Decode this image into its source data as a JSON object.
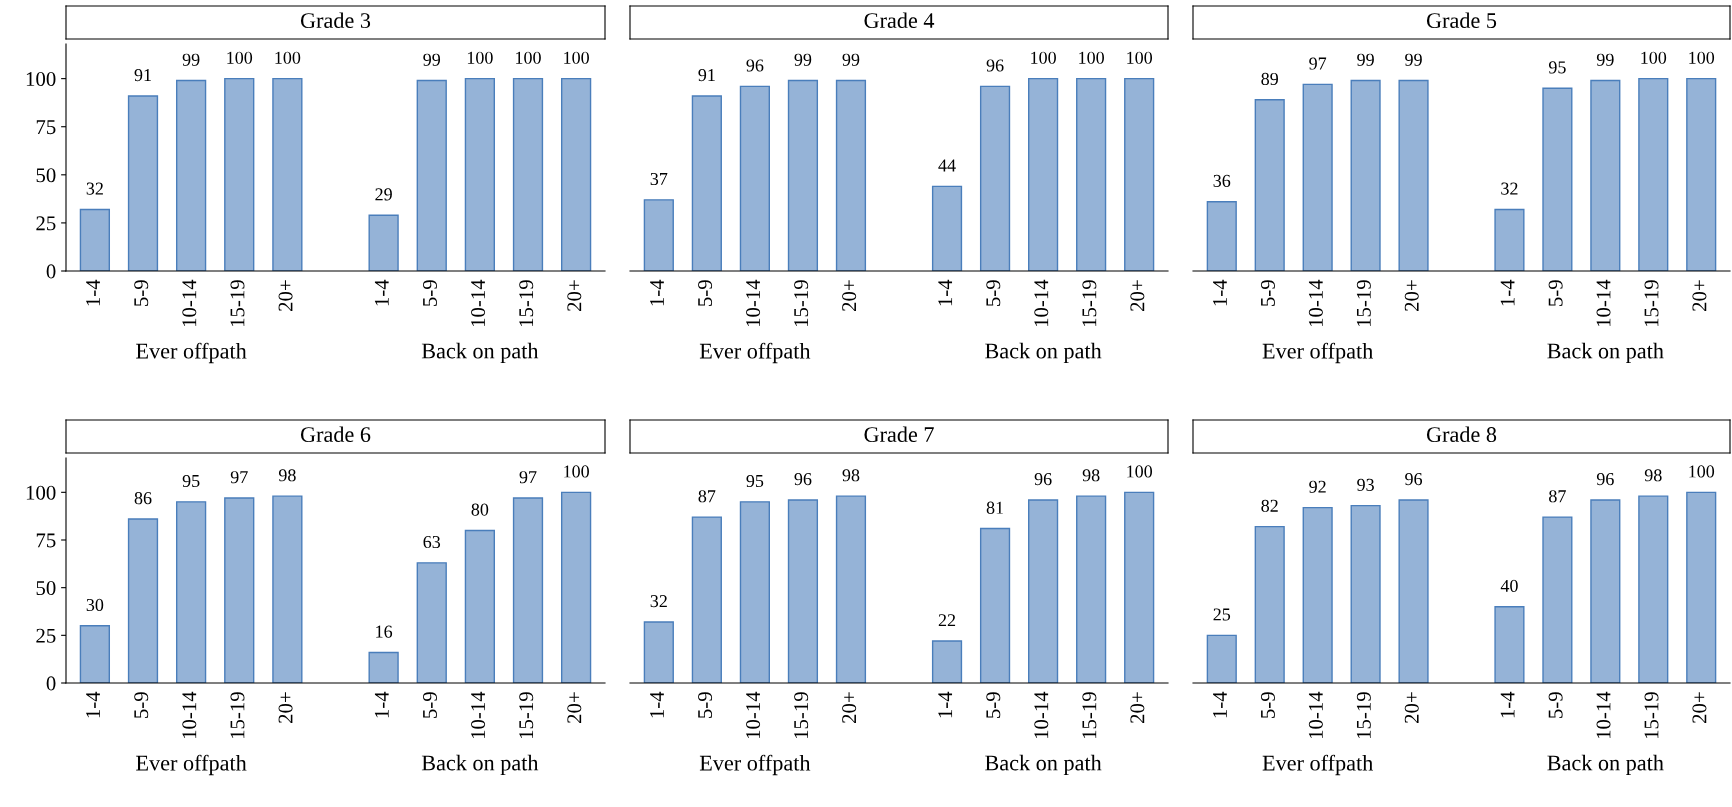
{
  "chart_data": [
    {
      "type": "bar",
      "title": "Grade 3",
      "categories": [
        "1-4",
        "5-9",
        "10-14",
        "15-19",
        "20+",
        null,
        "1-4",
        "5-9",
        "10-14",
        "15-19",
        "20+"
      ],
      "values": [
        32,
        91,
        99,
        100,
        100,
        null,
        29,
        99,
        100,
        100,
        100
      ],
      "color": "#95b3d7",
      "ylim": [
        0,
        118
      ],
      "yticks": [
        0,
        25,
        50,
        75,
        100
      ],
      "data_labels": true,
      "grid": false,
      "legend": false,
      "annotations": [
        "Ever offpath",
        "Back on path"
      ]
    },
    {
      "type": "bar",
      "title": "Grade 4",
      "categories": [
        "1-4",
        "5-9",
        "10-14",
        "15-19",
        "20+",
        null,
        "1-4",
        "5-9",
        "10-14",
        "15-19",
        "20+"
      ],
      "values": [
        37,
        91,
        96,
        99,
        99,
        null,
        44,
        96,
        100,
        100,
        100
      ],
      "color": "#95b3d7",
      "tick_labels": "x",
      "data_labels": true,
      "grid": false,
      "legend": false,
      "annotations": [
        "Ever offpath",
        "Back on path"
      ]
    },
    {
      "type": "bar",
      "title": "Grade 5",
      "categories": [
        "1-4",
        "5-9",
        "10-14",
        "15-19",
        "20+",
        null,
        "1-4",
        "5-9",
        "10-14",
        "15-19",
        "20+"
      ],
      "values": [
        36,
        89,
        97,
        99,
        99,
        null,
        32,
        95,
        99,
        100,
        100
      ],
      "color": "#95b3d7",
      "tick_labels": "x",
      "data_labels": true,
      "grid": false,
      "legend": false,
      "annotations": [
        "Ever offpath",
        "Back on path"
      ]
    },
    {
      "type": "bar",
      "title": "Grade 6",
      "categories": [
        "1-4",
        "5-9",
        "10-14",
        "15-19",
        "20+",
        null,
        "1-4",
        "5-9",
        "10-14",
        "15-19",
        "20+"
      ],
      "values": [
        30,
        86,
        95,
        97,
        98,
        null,
        16,
        63,
        80,
        97,
        100
      ],
      "color": "#95b3d7",
      "ylim": [
        0,
        118
      ],
      "yticks": [
        0,
        25,
        50,
        75,
        100
      ],
      "data_labels": true,
      "grid": false,
      "legend": false,
      "annotations": [
        "Ever offpath",
        "Back on path"
      ]
    },
    {
      "type": "bar",
      "title": "Grade 7",
      "categories": [
        "1-4",
        "5-9",
        "10-14",
        "15-19",
        "20+",
        null,
        "1-4",
        "5-9",
        "10-14",
        "15-19",
        "20+"
      ],
      "values": [
        32,
        87,
        95,
        96,
        98,
        null,
        22,
        81,
        96,
        98,
        100
      ],
      "color": "#95b3d7",
      "tick_labels": "x",
      "data_labels": true,
      "grid": false,
      "legend": false,
      "annotations": [
        "Ever offpath",
        "Back on path"
      ]
    },
    {
      "type": "bar",
      "title": "Grade 8",
      "categories": [
        "1-4",
        "5-9",
        "10-14",
        "15-19",
        "20+",
        null,
        "1-4",
        "5-9",
        "10-14",
        "15-19",
        "20+"
      ],
      "values": [
        25,
        82,
        92,
        93,
        96,
        null,
        40,
        87,
        96,
        98,
        100
      ],
      "color": "#95b3d7",
      "tick_labels": "x",
      "data_labels": true,
      "grid": false,
      "legend": false,
      "annotations": [
        "Ever offpath",
        "Back on path"
      ]
    }
  ]
}
